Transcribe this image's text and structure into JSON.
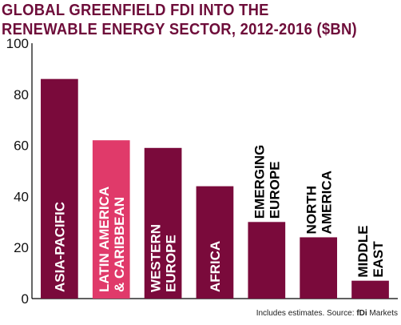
{
  "chart_data": {
    "type": "bar",
    "title": "GLOBAL GREENFIELD FDI INTO THE RENEWABLE ENERGY SECTOR, 2012-2016 ($BN)",
    "categories": [
      [
        "ASIA-PACIFIC"
      ],
      [
        "LATIN AMERICA",
        "& CARIBBEAN"
      ],
      [
        "WESTERN",
        "EUROPE"
      ],
      [
        "AFRICA"
      ],
      [
        "EMERGING",
        "EUROPE"
      ],
      [
        "NORTH",
        "AMERICA"
      ],
      [
        "MIDDLE",
        "EAST"
      ]
    ],
    "values": [
      86,
      62,
      59,
      44,
      30,
      24,
      7
    ],
    "highlight_index": 1,
    "label_inside": [
      true,
      true,
      true,
      true,
      false,
      false,
      false
    ],
    "ylim": [
      0,
      100
    ],
    "yticks": [
      0,
      20,
      40,
      60,
      80,
      100
    ],
    "grid": false,
    "colors": {
      "bar": "#7a0a3b",
      "highlight": "#e03a6a",
      "title": "#6e0d3a",
      "axis": "#000000"
    }
  },
  "source": {
    "prefix": "Includes estimates. Source: ",
    "brand": "fDi",
    "suffix": " Markets"
  }
}
